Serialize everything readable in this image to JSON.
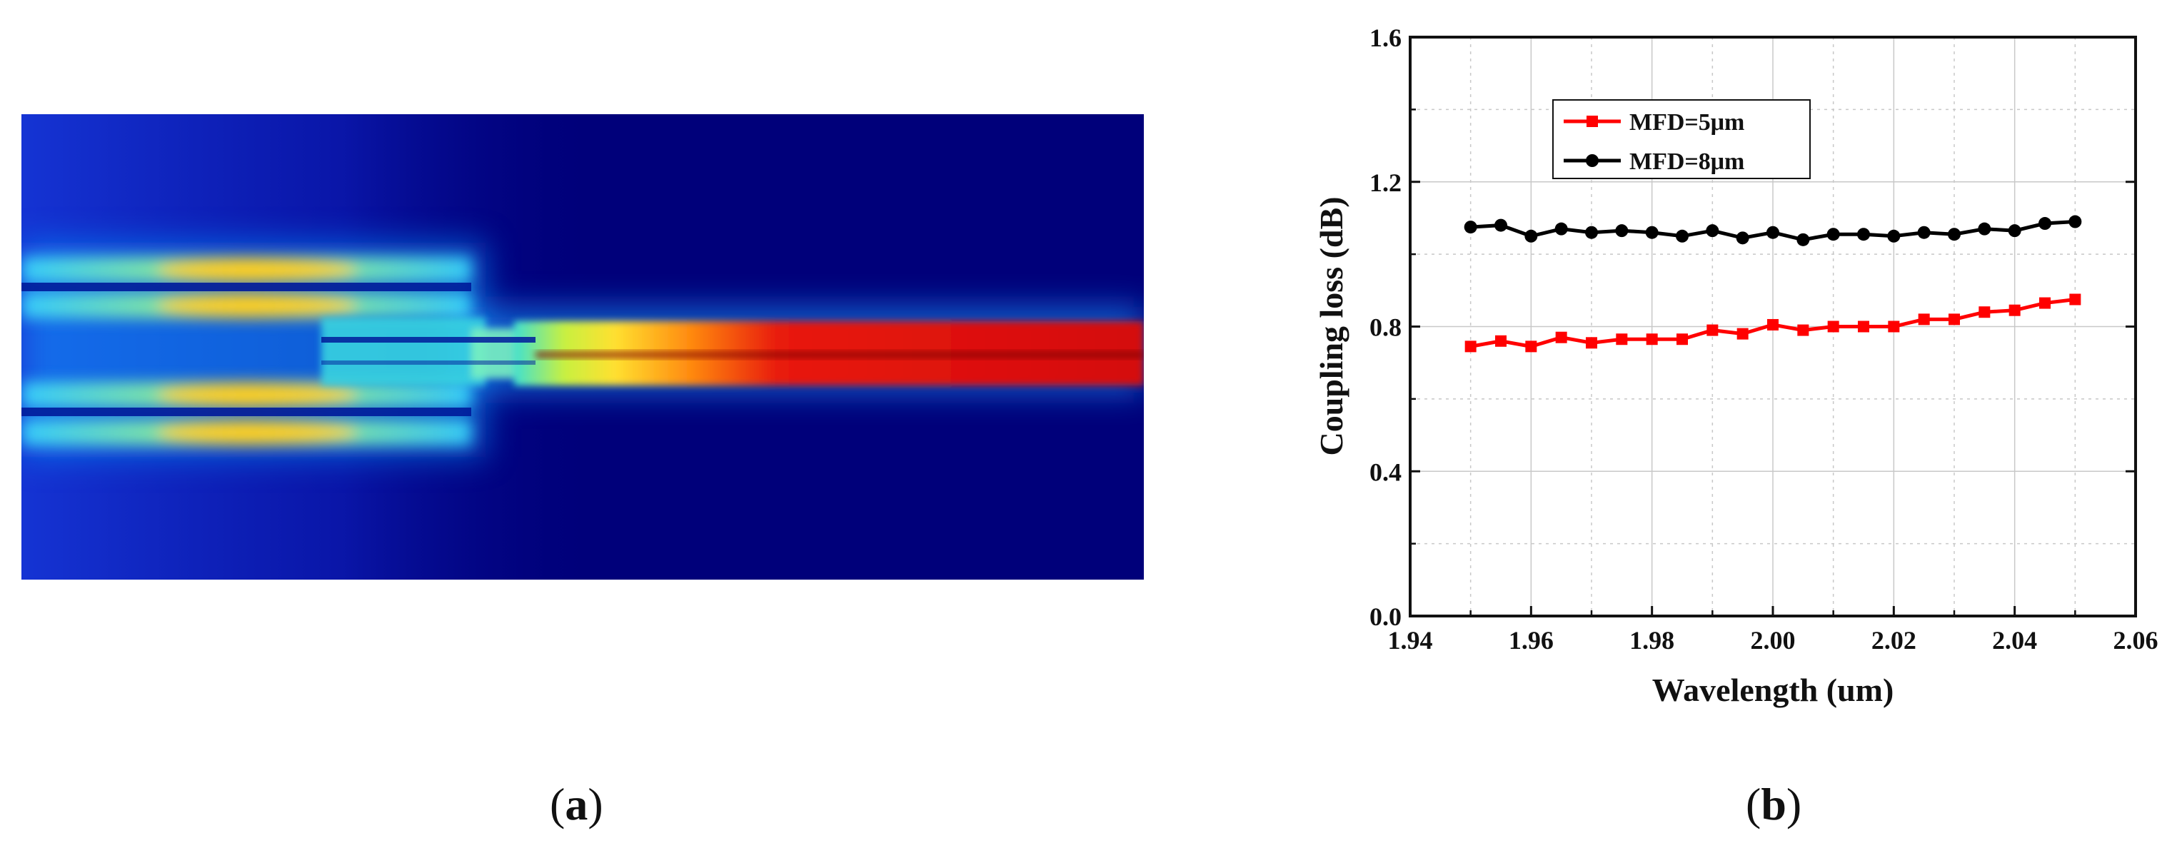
{
  "panel_a": {
    "caption": {
      "open": "(",
      "letter": "a",
      "close": ")"
    },
    "colors": {
      "background": "#00007a",
      "field_low": "#1b3cff",
      "field_mid": "#3fe0e8",
      "field_high": "#ffe030",
      "field_peak": "#e01010"
    }
  },
  "panel_b": {
    "caption": {
      "open": "(",
      "letter": "b",
      "close": ")"
    }
  },
  "chart_data": {
    "type": "line",
    "title": "",
    "xlabel": "Wavelength (um)",
    "ylabel": "Coupling loss (dB)",
    "xlim": [
      1.94,
      2.06
    ],
    "ylim": [
      0.0,
      1.6
    ],
    "x_ticks": [
      "1.94",
      "1.96",
      "1.98",
      "2.00",
      "2.02",
      "2.04",
      "2.06"
    ],
    "y_ticks": [
      "0.0",
      "0.4",
      "0.8",
      "1.2",
      "1.6"
    ],
    "x_tick_values": [
      1.94,
      1.96,
      1.98,
      2.0,
      2.02,
      2.04,
      2.06
    ],
    "y_tick_values": [
      0.0,
      0.4,
      0.8,
      1.2,
      1.6
    ],
    "grid": true,
    "legend_position": "top-left",
    "x": [
      1.95,
      1.955,
      1.96,
      1.965,
      1.97,
      1.975,
      1.98,
      1.985,
      1.99,
      1.995,
      2.0,
      2.005,
      2.01,
      2.015,
      2.02,
      2.025,
      2.03,
      2.035,
      2.04,
      2.045,
      2.05
    ],
    "series": [
      {
        "name": "MFD=5μm",
        "color": "#ff0000",
        "marker": "square",
        "values": [
          0.745,
          0.76,
          0.745,
          0.77,
          0.755,
          0.765,
          0.765,
          0.765,
          0.79,
          0.78,
          0.805,
          0.79,
          0.8,
          0.8,
          0.8,
          0.82,
          0.82,
          0.84,
          0.845,
          0.865,
          0.875
        ]
      },
      {
        "name": "MFD=8μm",
        "color": "#000000",
        "marker": "circle",
        "values": [
          1.075,
          1.08,
          1.05,
          1.07,
          1.06,
          1.065,
          1.06,
          1.05,
          1.065,
          1.045,
          1.06,
          1.04,
          1.055,
          1.055,
          1.05,
          1.06,
          1.055,
          1.07,
          1.065,
          1.085,
          1.09
        ]
      }
    ]
  }
}
